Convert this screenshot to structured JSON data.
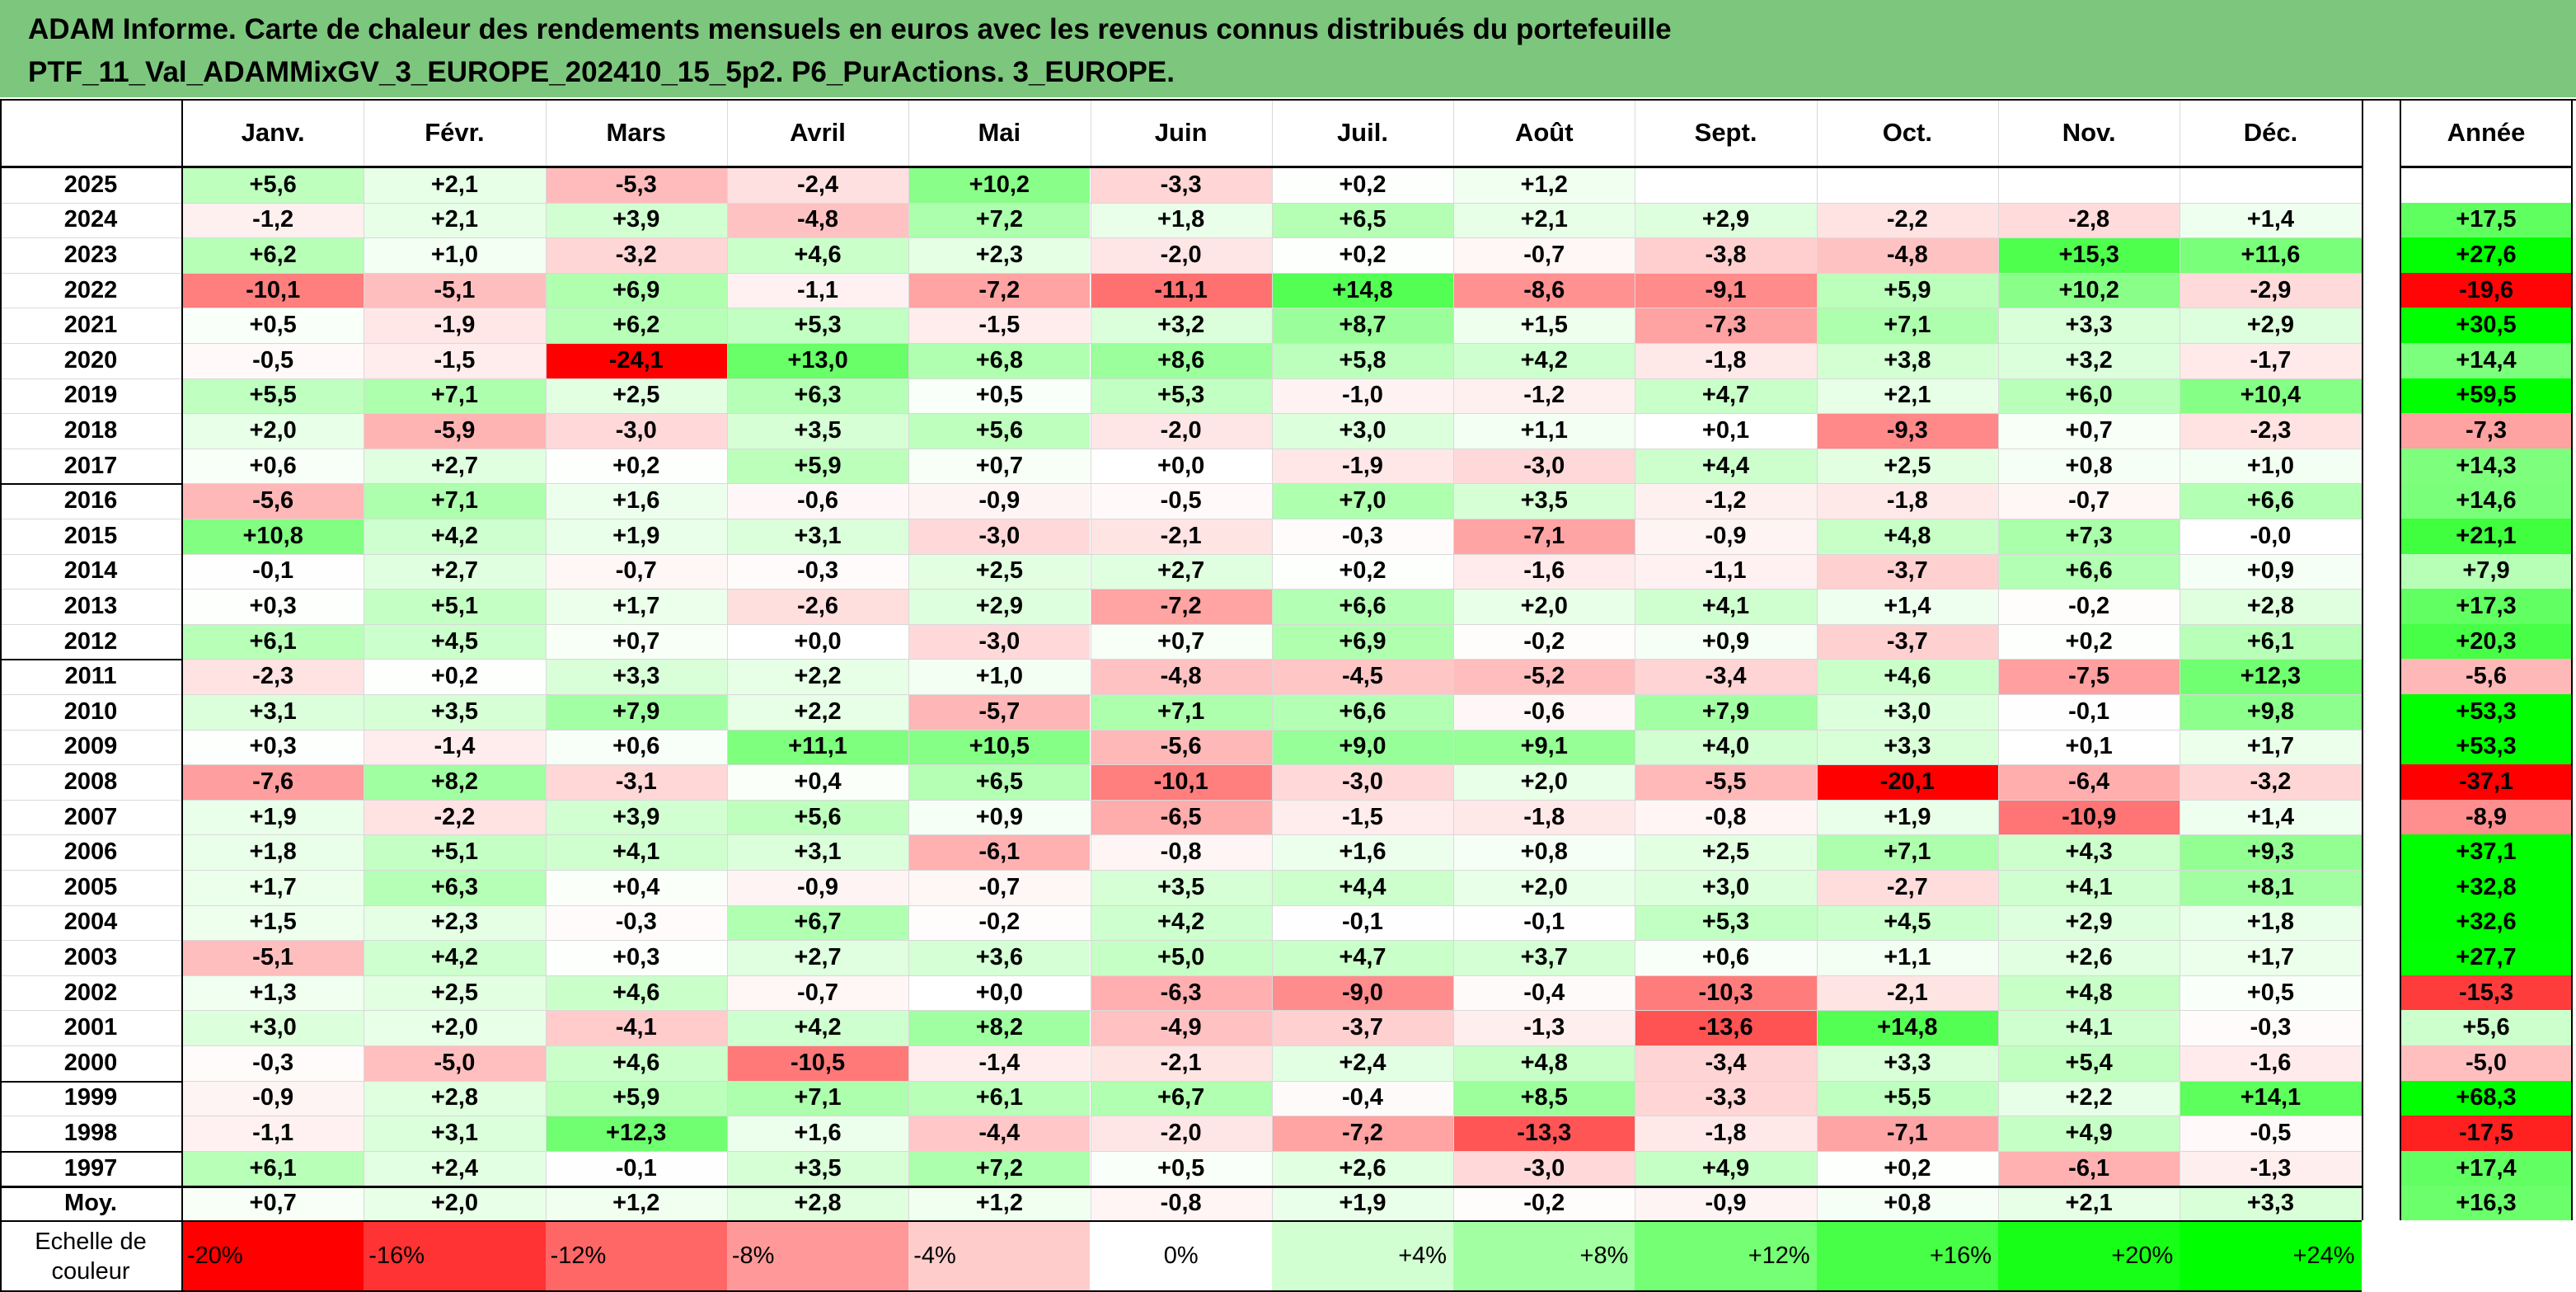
{
  "header": {
    "line1": "ADAM Informe. Carte de chaleur des rendements mensuels en euros avec les revenus connus distribués du portefeuille",
    "line2": "PTF_11_Val_ADAMMixGV_3_EUROPE_202410_15_5p2. P6_PurActions. 3_EUROPE."
  },
  "chart_data": {
    "type": "heatmap",
    "title": "ADAM Informe. Carte de chaleur des rendements mensuels en euros avec les revenus connus distribués du portefeuille PTF_11_Val_ADAMMixGV_3_EUROPE_202410_15_5p2. P6_PurActions. 3_EUROPE.",
    "months": [
      "Janv.",
      "Févr.",
      "Mars",
      "Avril",
      "Mai",
      "Juin",
      "Juil.",
      "Août",
      "Sept.",
      "Oct.",
      "Nov.",
      "Déc."
    ],
    "year_label": "Année",
    "rows": [
      {
        "label": "2025",
        "values": [
          "+5,6",
          "+2,1",
          "-5,3",
          "-2,4",
          "+10,2",
          "-3,3",
          "+0,2",
          "+1,2",
          "",
          "",
          "",
          ""
        ],
        "annual": ""
      },
      {
        "label": "2024",
        "values": [
          "-1,2",
          "+2,1",
          "+3,9",
          "-4,8",
          "+7,2",
          "+1,8",
          "+6,5",
          "+2,1",
          "+2,9",
          "-2,2",
          "-2,8",
          "+1,4"
        ],
        "annual": "+17,5"
      },
      {
        "label": "2023",
        "values": [
          "+6,2",
          "+1,0",
          "-3,2",
          "+4,6",
          "+2,3",
          "-2,0",
          "+0,2",
          "-0,7",
          "-3,8",
          "-4,8",
          "+15,3",
          "+11,6"
        ],
        "annual": "+27,6"
      },
      {
        "label": "2022",
        "values": [
          "-10,1",
          "-5,1",
          "+6,9",
          "-1,1",
          "-7,2",
          "-11,1",
          "+14,8",
          "-8,6",
          "-9,1",
          "+5,9",
          "+10,2",
          "-2,9"
        ],
        "annual": "-19,6"
      },
      {
        "label": "2021",
        "values": [
          "+0,5",
          "-1,9",
          "+6,2",
          "+5,3",
          "-1,5",
          "+3,2",
          "+8,7",
          "+1,5",
          "-7,3",
          "+7,1",
          "+3,3",
          "+2,9"
        ],
        "annual": "+30,5"
      },
      {
        "label": "2020",
        "values": [
          "-0,5",
          "-1,5",
          "-24,1",
          "+13,0",
          "+6,8",
          "+8,6",
          "+5,8",
          "+4,2",
          "-1,8",
          "+3,8",
          "+3,2",
          "-1,7"
        ],
        "annual": "+14,4"
      },
      {
        "label": "2019",
        "values": [
          "+5,5",
          "+7,1",
          "+2,5",
          "+6,3",
          "+0,5",
          "+5,3",
          "-1,0",
          "-1,2",
          "+4,7",
          "+2,1",
          "+6,0",
          "+10,4"
        ],
        "annual": "+59,5"
      },
      {
        "label": "2018",
        "values": [
          "+2,0",
          "-5,9",
          "-3,0",
          "+3,5",
          "+5,6",
          "-2,0",
          "+3,0",
          "+1,1",
          "+0,1",
          "-9,3",
          "+0,7",
          "-2,3"
        ],
        "annual": "-7,3"
      },
      {
        "label": "2017",
        "values": [
          "+0,6",
          "+2,7",
          "+0,2",
          "+5,9",
          "+0,7",
          "+0,0",
          "-1,9",
          "-3,0",
          "+4,4",
          "+2,5",
          "+0,8",
          "+1,0"
        ],
        "annual": "+14,3"
      },
      {
        "label": "2016",
        "values": [
          "-5,6",
          "+7,1",
          "+1,6",
          "-0,6",
          "-0,9",
          "-0,5",
          "+7,0",
          "+3,5",
          "-1,2",
          "-1,8",
          "-0,7",
          "+6,6"
        ],
        "annual": "+14,6"
      },
      {
        "label": "2015",
        "values": [
          "+10,8",
          "+4,2",
          "+1,9",
          "+3,1",
          "-3,0",
          "-2,1",
          "-0,3",
          "-7,1",
          "-0,9",
          "+4,8",
          "+7,3",
          "-0,0"
        ],
        "annual": "+21,1"
      },
      {
        "label": "2014",
        "values": [
          "-0,1",
          "+2,7",
          "-0,7",
          "-0,3",
          "+2,5",
          "+2,7",
          "+0,2",
          "-1,6",
          "-1,1",
          "-3,7",
          "+6,6",
          "+0,9"
        ],
        "annual": "+7,9"
      },
      {
        "label": "2013",
        "values": [
          "+0,3",
          "+5,1",
          "+1,7",
          "-2,6",
          "+2,9",
          "-7,2",
          "+6,6",
          "+2,0",
          "+4,1",
          "+1,4",
          "-0,2",
          "+2,8"
        ],
        "annual": "+17,3"
      },
      {
        "label": "2012",
        "values": [
          "+6,1",
          "+4,5",
          "+0,7",
          "+0,0",
          "-3,0",
          "+0,7",
          "+6,9",
          "-0,2",
          "+0,9",
          "-3,7",
          "+0,2",
          "+6,1"
        ],
        "annual": "+20,3"
      },
      {
        "label": "2011",
        "values": [
          "-2,3",
          "+0,2",
          "+3,3",
          "+2,2",
          "+1,0",
          "-4,8",
          "-4,5",
          "-5,2",
          "-3,4",
          "+4,6",
          "-7,5",
          "+12,3"
        ],
        "annual": "-5,6"
      },
      {
        "label": "2010",
        "values": [
          "+3,1",
          "+3,5",
          "+7,9",
          "+2,2",
          "-5,7",
          "+7,1",
          "+6,6",
          "-0,6",
          "+7,9",
          "+3,0",
          "-0,1",
          "+9,8"
        ],
        "annual": "+53,3"
      },
      {
        "label": "2009",
        "values": [
          "+0,3",
          "-1,4",
          "+0,6",
          "+11,1",
          "+10,5",
          "-5,6",
          "+9,0",
          "+9,1",
          "+4,0",
          "+3,3",
          "+0,1",
          "+1,7"
        ],
        "annual": "+53,3"
      },
      {
        "label": "2008",
        "values": [
          "-7,6",
          "+8,2",
          "-3,1",
          "+0,4",
          "+6,5",
          "-10,1",
          "-3,0",
          "+2,0",
          "-5,5",
          "-20,1",
          "-6,4",
          "-3,2"
        ],
        "annual": "-37,1"
      },
      {
        "label": "2007",
        "values": [
          "+1,9",
          "-2,2",
          "+3,9",
          "+5,6",
          "+0,9",
          "-6,5",
          "-1,5",
          "-1,8",
          "-0,8",
          "+1,9",
          "-10,9",
          "+1,4"
        ],
        "annual": "-8,9"
      },
      {
        "label": "2006",
        "values": [
          "+1,8",
          "+5,1",
          "+4,1",
          "+3,1",
          "-6,1",
          "-0,8",
          "+1,6",
          "+0,8",
          "+2,5",
          "+7,1",
          "+4,3",
          "+9,3"
        ],
        "annual": "+37,1"
      },
      {
        "label": "2005",
        "values": [
          "+1,7",
          "+6,3",
          "+0,4",
          "-0,9",
          "-0,7",
          "+3,5",
          "+4,4",
          "+2,0",
          "+3,0",
          "-2,7",
          "+4,1",
          "+8,1"
        ],
        "annual": "+32,8"
      },
      {
        "label": "2004",
        "values": [
          "+1,5",
          "+2,3",
          "-0,3",
          "+6,7",
          "-0,2",
          "+4,2",
          "-0,1",
          "-0,1",
          "+5,3",
          "+4,5",
          "+2,9",
          "+1,8"
        ],
        "annual": "+32,6"
      },
      {
        "label": "2003",
        "values": [
          "-5,1",
          "+4,2",
          "+0,3",
          "+2,7",
          "+3,6",
          "+5,0",
          "+4,7",
          "+3,7",
          "+0,6",
          "+1,1",
          "+2,6",
          "+1,7"
        ],
        "annual": "+27,7"
      },
      {
        "label": "2002",
        "values": [
          "+1,3",
          "+2,5",
          "+4,6",
          "-0,7",
          "+0,0",
          "-6,3",
          "-9,0",
          "-0,4",
          "-10,3",
          "-2,1",
          "+4,8",
          "+0,5"
        ],
        "annual": "-15,3"
      },
      {
        "label": "2001",
        "values": [
          "+3,0",
          "+2,0",
          "-4,1",
          "+4,2",
          "+8,2",
          "-4,9",
          "-3,7",
          "-1,3",
          "-13,6",
          "+14,8",
          "+4,1",
          "-0,3"
        ],
        "annual": "+5,6"
      },
      {
        "label": "2000",
        "values": [
          "-0,3",
          "-5,0",
          "+4,6",
          "-10,5",
          "-1,4",
          "-2,1",
          "+2,4",
          "+4,8",
          "-3,4",
          "+3,3",
          "+5,4",
          "-1,6"
        ],
        "annual": "-5,0"
      },
      {
        "label": "1999",
        "values": [
          "-0,9",
          "+2,8",
          "+5,9",
          "+7,1",
          "+6,1",
          "+6,7",
          "-0,4",
          "+8,5",
          "-3,3",
          "+5,5",
          "+2,2",
          "+14,1"
        ],
        "annual": "+68,3"
      },
      {
        "label": "1998",
        "values": [
          "-1,1",
          "+3,1",
          "+12,3",
          "+1,6",
          "-4,4",
          "-2,0",
          "-7,2",
          "-13,3",
          "-1,8",
          "-7,1",
          "+4,9",
          "-0,5"
        ],
        "annual": "-17,5"
      },
      {
        "label": "1997",
        "values": [
          "+6,1",
          "+2,4",
          "-0,1",
          "+3,5",
          "+7,2",
          "+0,5",
          "+2,6",
          "-3,0",
          "+4,9",
          "+0,2",
          "-6,1",
          "-1,3"
        ],
        "annual": "+17,4"
      }
    ],
    "average": {
      "label": "Moy.",
      "values": [
        "+0,7",
        "+2,0",
        "+1,2",
        "+2,8",
        "+1,2",
        "-0,8",
        "+1,9",
        "-0,2",
        "-0,9",
        "+0,8",
        "+2,1",
        "+3,3"
      ],
      "annual": "+16,3"
    },
    "scale": {
      "label_line1": "Echelle de",
      "label_line2": "couleur",
      "items": [
        {
          "text": "-20%",
          "v": -20
        },
        {
          "text": "-16%",
          "v": -16
        },
        {
          "text": "-12%",
          "v": -12
        },
        {
          "text": "-8%",
          "v": -8
        },
        {
          "text": "-4%",
          "v": -4
        },
        {
          "text": "0%",
          "v": 0
        },
        {
          "text": "+4%",
          "v": 4
        },
        {
          "text": "+8%",
          "v": 8
        },
        {
          "text": "+12%",
          "v": 12
        },
        {
          "text": "+16%",
          "v": 16
        },
        {
          "text": "+20%",
          "v": 20
        },
        {
          "text": "+24%",
          "v": 24
        }
      ]
    },
    "colors": {
      "negative_max": "#ff0000",
      "neutral": "#ffffff",
      "positive_max": "#00ff00"
    }
  }
}
